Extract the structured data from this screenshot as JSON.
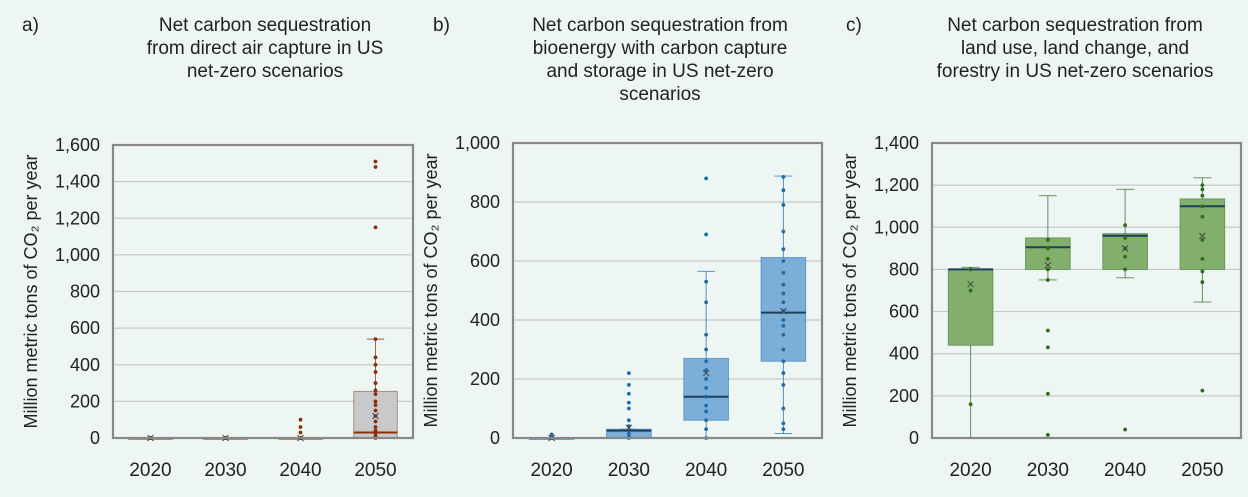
{
  "chart_data": [
    {
      "type": "box",
      "panel_label": "a)",
      "title": "Net carbon sequestration\nfrom direct air capture in US\nnet-zero scenarios",
      "ylabel": "Million metric tons of CO₂ per year",
      "ylim": [
        0,
        1600
      ],
      "yticks": [
        0,
        200,
        400,
        600,
        800,
        1000,
        1200,
        1400,
        1600
      ],
      "ytick_labels": [
        "0",
        "200",
        "400",
        "600",
        "800",
        "1,000",
        "1,200",
        "1,400",
        "1,600"
      ],
      "categories": [
        "2020",
        "2030",
        "2040",
        "2050"
      ],
      "grid": true,
      "box_color": "#c9c9cc",
      "point_color": "#8a2e08",
      "boxes": [
        {
          "year": "2020",
          "q1": 0,
          "median": 0,
          "q3": 0,
          "whisker_low": 0,
          "whisker_high": 0,
          "mean": 0,
          "points": [
            0,
            0,
            0,
            0
          ]
        },
        {
          "year": "2030",
          "q1": 0,
          "median": 0,
          "q3": 0,
          "whisker_low": 0,
          "whisker_high": 0,
          "mean": 0,
          "points": [
            0,
            0,
            0,
            0
          ]
        },
        {
          "year": "2040",
          "q1": 0,
          "median": 0,
          "q3": 0,
          "whisker_low": 0,
          "whisker_high": 0,
          "mean": 0,
          "points": [
            0,
            0,
            0,
            30,
            60,
            100
          ]
        },
        {
          "year": "2050",
          "q1": 0,
          "median": 30,
          "q3": 255,
          "whisker_low": 0,
          "whisker_high": 540,
          "mean": 120,
          "points": [
            0,
            10,
            25,
            40,
            60,
            90,
            120,
            150,
            180,
            200,
            240,
            260,
            300,
            360,
            400,
            440,
            540,
            1150,
            1480,
            1510
          ]
        }
      ]
    },
    {
      "type": "box",
      "panel_label": "b)",
      "title": "Net carbon sequestration from\nbioenergy with carbon capture\nand storage in US net-zero\nscenarios",
      "ylabel": "Million metric tons of CO₂ per year",
      "ylim": [
        0,
        1000
      ],
      "yticks": [
        0,
        200,
        400,
        600,
        800,
        1000
      ],
      "ytick_labels": [
        "0",
        "200",
        "400",
        "600",
        "800",
        "1,000"
      ],
      "categories": [
        "2020",
        "2030",
        "2040",
        "2050"
      ],
      "grid": true,
      "box_color": "#7bafd8",
      "point_color": "#1f6aa8",
      "boxes": [
        {
          "year": "2020",
          "q1": 0,
          "median": 0,
          "q3": 0,
          "whisker_low": 0,
          "whisker_high": 0,
          "mean": 0,
          "points": [
            0,
            5,
            12
          ]
        },
        {
          "year": "2030",
          "q1": 0,
          "median": 25,
          "q3": 30,
          "whisker_low": 0,
          "whisker_high": 30,
          "mean": 35,
          "points": [
            0,
            5,
            15,
            40,
            60,
            100,
            120,
            150,
            180,
            220
          ]
        },
        {
          "year": "2040",
          "q1": 60,
          "median": 140,
          "q3": 270,
          "whisker_low": 0,
          "whisker_high": 565,
          "mean": 220,
          "points": [
            0,
            30,
            60,
            90,
            110,
            140,
            170,
            200,
            230,
            260,
            300,
            350,
            460,
            530,
            690,
            880
          ]
        },
        {
          "year": "2050",
          "q1": 260,
          "median": 425,
          "q3": 612,
          "whisker_low": 15,
          "whisker_high": 888,
          "mean": 430,
          "points": [
            30,
            50,
            100,
            180,
            220,
            260,
            300,
            350,
            380,
            400,
            430,
            460,
            490,
            520,
            560,
            600,
            640,
            700,
            790,
            840,
            885
          ]
        }
      ]
    },
    {
      "type": "box",
      "panel_label": "c)",
      "title": "Net carbon sequestration from\nland use, land change, and\nforestry in US net-zero scenarios",
      "ylabel": "Million metric tons of CO₂ per year",
      "ylim": [
        0,
        1400
      ],
      "yticks": [
        0,
        200,
        400,
        600,
        800,
        1000,
        1200,
        1400
      ],
      "ytick_labels": [
        "0",
        "200",
        "400",
        "600",
        "800",
        "1,000",
        "1,200",
        "1,400"
      ],
      "categories": [
        "2020",
        "2030",
        "2040",
        "2050"
      ],
      "grid": true,
      "box_color": "#82b06c",
      "point_color": "#2e6a1e",
      "boxes": [
        {
          "year": "2020",
          "q1": 440,
          "median": 800,
          "q3": 800,
          "whisker_low": -40,
          "whisker_high": 810,
          "mean": 730,
          "points": [
            160,
            700,
            800,
            800
          ]
        },
        {
          "year": "2030",
          "q1": 800,
          "median": 905,
          "q3": 950,
          "whisker_low": 750,
          "whisker_high": 1150,
          "mean": 820,
          "points": [
            15,
            210,
            430,
            510,
            750,
            800,
            850,
            900,
            940
          ]
        },
        {
          "year": "2040",
          "q1": 800,
          "median": 960,
          "q3": 970,
          "whisker_low": 760,
          "whisker_high": 1180,
          "mean": 900,
          "points": [
            40,
            800,
            860,
            900,
            950,
            1010
          ]
        },
        {
          "year": "2050",
          "q1": 800,
          "median": 1100,
          "q3": 1135,
          "whisker_low": 645,
          "whisker_high": 1235,
          "mean": 960,
          "points": [
            225,
            740,
            790,
            850,
            940,
            1050,
            1100,
            1150,
            1180,
            1200
          ]
        }
      ]
    }
  ]
}
